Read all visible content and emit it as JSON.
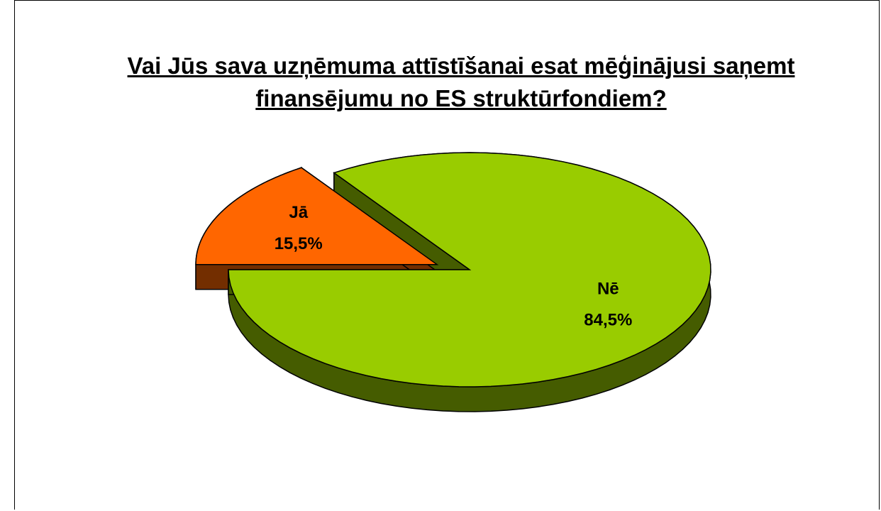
{
  "chart_data": {
    "type": "pie",
    "title": "Vai Jūs sava uzņēmuma attīstīšanai esat mēģinājusi saņemt finansējumu no ES struktūrfondiem?",
    "categories": [
      "Jā",
      "Nē"
    ],
    "values": [
      15.5,
      84.5
    ],
    "value_labels": [
      "15,5%",
      "84,5%"
    ],
    "colors": [
      "#ff6600",
      "#99cc00"
    ]
  }
}
